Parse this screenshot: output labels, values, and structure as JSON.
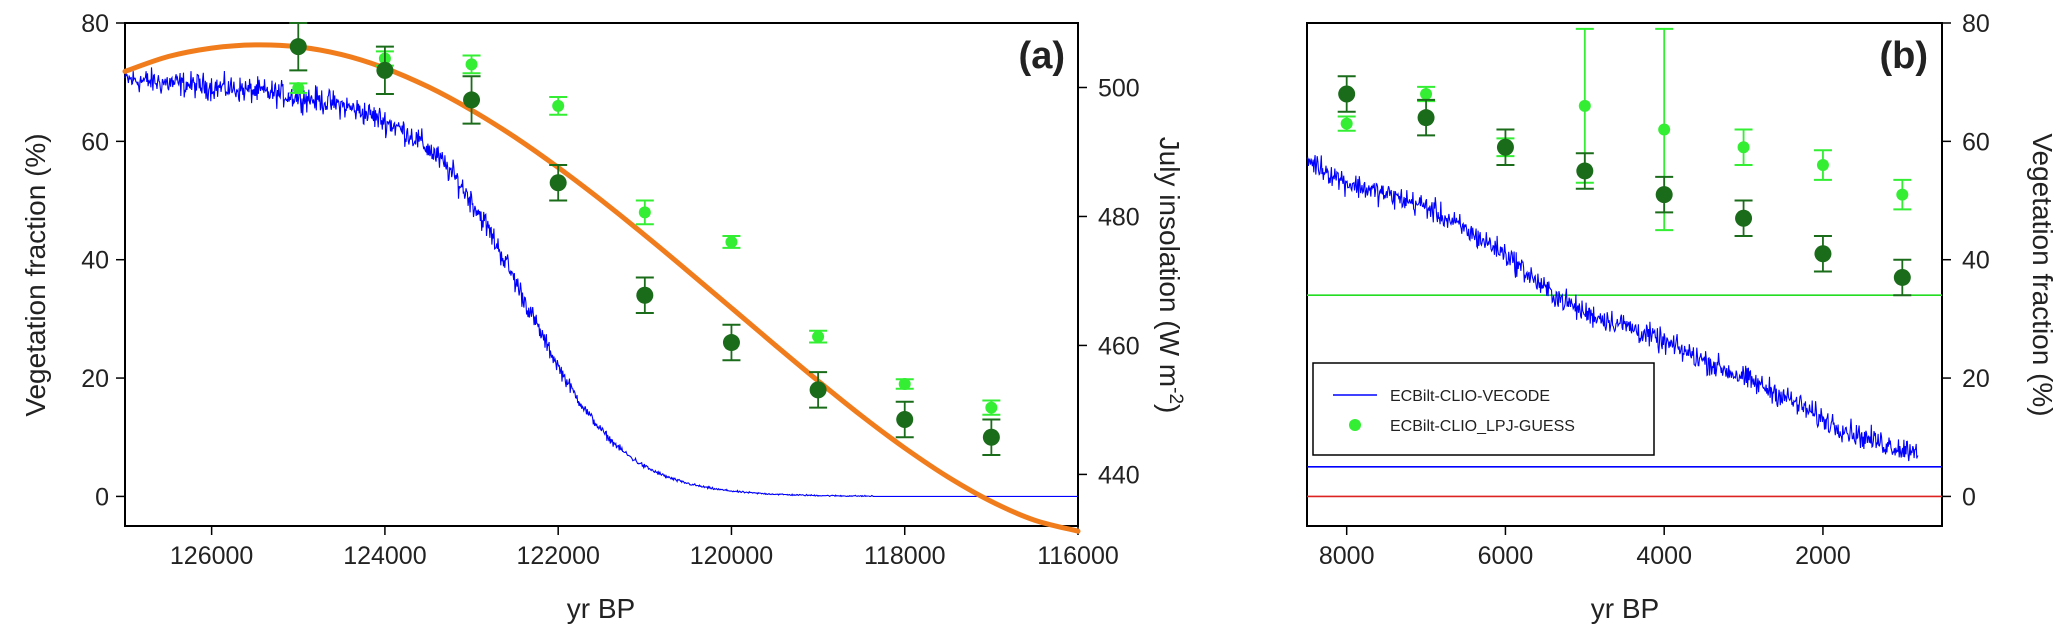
{
  "chart_data": [
    {
      "panel": "(a)",
      "type": "line",
      "xlabel": "yr BP",
      "ylabel": "Vegetation fraction (%)",
      "ylabel_right": "July insolation (W m⁻²)",
      "ylabel_right_parts": {
        "main": "July insolation (W m",
        "sup": "-2",
        "end": ")"
      },
      "xlim": [
        127000,
        116000
      ],
      "ylim": [
        -5,
        80
      ],
      "ylim_right": [
        432,
        510
      ],
      "x_ticks": [
        126000,
        124000,
        122000,
        120000,
        118000,
        116000
      ],
      "x_tick_labels": [
        "126000",
        "124000",
        "122000",
        "120000",
        "118000",
        "116000"
      ],
      "y_ticks": [
        0,
        20,
        40,
        60,
        80
      ],
      "y_tick_labels": [
        "0",
        "20",
        "40",
        "60",
        "80"
      ],
      "y_right_ticks": [
        440,
        460,
        480,
        500
      ],
      "y_right_tick_labels": [
        "440",
        "460",
        "480",
        "500"
      ],
      "series": [
        {
          "name": "ECBilt-CLIO-VECODE",
          "style": "noisy-line",
          "color": "#0000ff",
          "x_start": 127000,
          "x_end": 116000,
          "level_start": 67,
          "level_end": 0,
          "transition_center": 122400,
          "transition_width": 560,
          "noise_amplitude": 3.2
        },
        {
          "name": "July insolation",
          "style": "smooth-line",
          "axis": "right",
          "color": "#f07c1c",
          "x": [
            127000,
            126500,
            126000,
            125500,
            125000,
            124500,
            124000,
            123500,
            123000,
            122500,
            122000,
            121500,
            121000,
            120500,
            120000,
            119500,
            119000,
            118500,
            118000,
            117500,
            117000,
            116500,
            116000
          ],
          "values": [
            502.5,
            504.8,
            506.1,
            506.6,
            506.3,
            505.1,
            503.0,
            500.1,
            496.5,
            492.3,
            487.6,
            482.5,
            477.1,
            471.5,
            465.8,
            460.1,
            454.5,
            449.1,
            444.1,
            439.6,
            435.8,
            432.9,
            431.2
          ]
        },
        {
          "name": "ECBilt-CLIO_LPJ-GUESS",
          "style": "points-errorbars",
          "color": "#33ee33",
          "x": [
            125000,
            124000,
            123000,
            122000,
            121000,
            120000,
            119000,
            118000,
            117000
          ],
          "values": [
            69,
            74,
            73,
            66,
            48,
            43,
            27,
            19,
            15
          ],
          "err": [
            0.8,
            1.2,
            1.5,
            1.5,
            2.0,
            1.0,
            1.0,
            0.8,
            1.2
          ]
        },
        {
          "name": "ECBilt-CLIO_LPJ-GUESS dark",
          "style": "points-errorbars",
          "color": "#1a6b1a",
          "x": [
            125000,
            124000,
            123000,
            122000,
            121000,
            120000,
            119000,
            118000,
            117000
          ],
          "values": [
            76,
            72,
            67,
            53,
            34,
            26,
            18,
            13,
            10
          ],
          "err": [
            4,
            4,
            4,
            3,
            3,
            3,
            3,
            3,
            3
          ]
        }
      ]
    },
    {
      "panel": "(b)",
      "type": "line",
      "xlabel": "yr BP",
      "ylabel": "Vegetation fraction (%)",
      "xlim": [
        8500,
        500
      ],
      "ylim": [
        -5,
        80
      ],
      "x_ticks": [
        8000,
        6000,
        4000,
        2000
      ],
      "x_tick_labels": [
        "8000",
        "6000",
        "4000",
        "2000"
      ],
      "y_ticks": [
        0,
        20,
        40,
        60,
        80
      ],
      "y_tick_labels": [
        "0",
        "20",
        "40",
        "60",
        "80"
      ],
      "hlines": [
        {
          "y": 34,
          "color": "#22dd22"
        },
        {
          "y": 5,
          "color": "#0000ff"
        },
        {
          "y": 0,
          "color": "#dd2222"
        }
      ],
      "legend": {
        "position": "lower-left",
        "entries": [
          {
            "label": "ECBilt-CLIO-VECODE",
            "marker": "line",
            "color": "#0000ff"
          },
          {
            "label": "ECBilt-CLIO_LPJ-GUESS",
            "marker": "point",
            "color": "#33ee33"
          }
        ]
      },
      "series": [
        {
          "name": "ECBilt-CLIO-VECODE",
          "style": "noisy-line",
          "color": "#0000ff",
          "x": [
            8500,
            8000,
            7500,
            7000,
            6500,
            6000,
            5500,
            5000,
            4500,
            4000,
            3500,
            3000,
            2500,
            2000,
            1500,
            1000,
            800
          ],
          "values": [
            57,
            53,
            51,
            49,
            45,
            41,
            35,
            31,
            29,
            26,
            23,
            20,
            17,
            13,
            10,
            8,
            8
          ],
          "noise_amplitude": 3.0
        },
        {
          "name": "ECBilt-CLIO_LPJ-GUESS",
          "style": "points-errorbars",
          "color": "#33ee33",
          "x": [
            8000,
            7000,
            6000,
            5000,
            4000,
            3000,
            2000,
            1000
          ],
          "values": [
            63,
            68,
            59,
            66,
            62,
            59,
            56,
            51
          ],
          "err": [
            1.2,
            1.2,
            1.5,
            13,
            17,
            3,
            2.5,
            2.5
          ]
        },
        {
          "name": "ECBilt-CLIO_LPJ-GUESS dark",
          "style": "points-errorbars",
          "color": "#1a6b1a",
          "x": [
            8000,
            7000,
            6000,
            5000,
            4000,
            3000,
            2000,
            1000
          ],
          "values": [
            68,
            64,
            59,
            55,
            51,
            47,
            41,
            37
          ],
          "err": [
            3,
            3,
            3,
            3,
            3,
            3,
            3,
            3
          ]
        }
      ]
    }
  ]
}
